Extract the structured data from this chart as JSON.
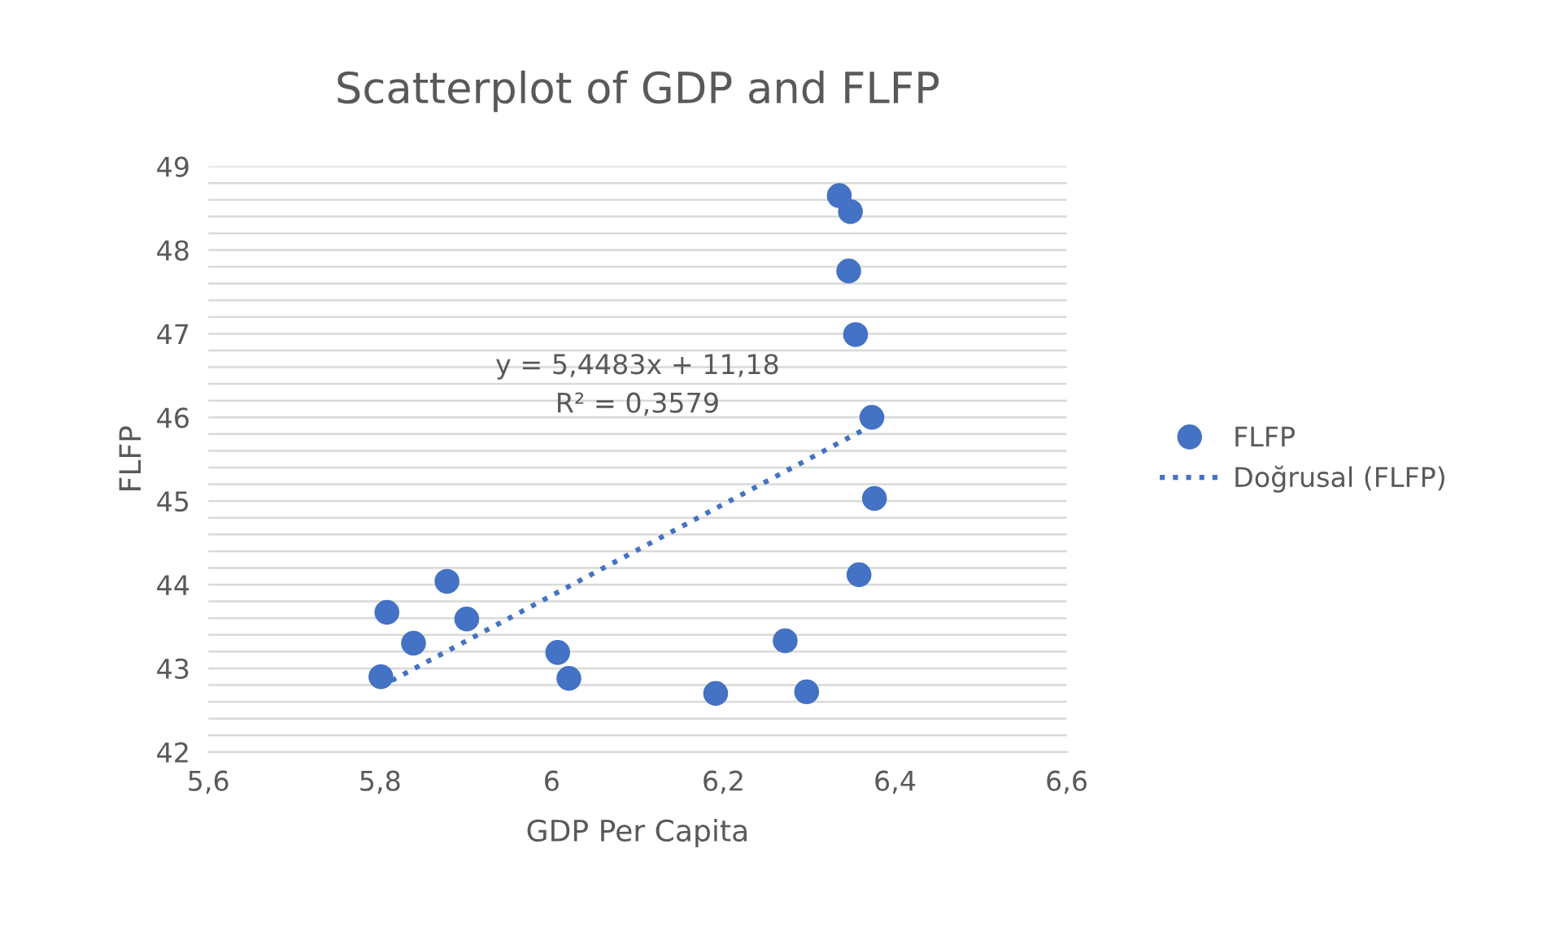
{
  "chart_data": {
    "type": "scatter",
    "title": "Scatterplot of GDP and FLFP",
    "xlabel": "GDP Per Capita",
    "ylabel": "FLFP",
    "series": [
      {
        "name": "FLFP",
        "color": "#4472c4",
        "marker": "circle",
        "x": [
          6.335,
          6.348,
          6.346,
          6.354,
          6.373,
          6.376,
          6.358,
          5.808,
          5.878,
          5.839,
          5.901,
          5.801,
          6.007,
          6.02,
          6.191,
          6.272,
          6.297
        ],
        "values": [
          48.65,
          48.46,
          47.75,
          46.99,
          46.0,
          45.03,
          44.12,
          43.67,
          44.04,
          43.3,
          43.59,
          42.9,
          43.19,
          42.88,
          42.7,
          43.33,
          42.72
        ]
      },
      {
        "name": "Doğrusal (FLFP)",
        "type": "line",
        "color": "#4472c4",
        "line_style": "dotted",
        "x": [
          5.8,
          6.376
        ],
        "values": [
          42.78,
          45.92
        ]
      }
    ],
    "annotations": [
      "y = 5,4483x + 11,18\nR² = 0,3579"
    ],
    "xlim": [
      5.6,
      6.6
    ],
    "ylim": [
      42,
      49
    ],
    "xticks": [
      {
        "value": 5.6,
        "label": "5,6"
      },
      {
        "value": 5.8,
        "label": "5,8"
      },
      6,
      {
        "value": 6.2,
        "label": "6,2"
      },
      {
        "value": 6.4,
        "label": "6,4"
      },
      {
        "value": 6.6,
        "label": "6,6"
      }
    ],
    "yticks": [
      42,
      {
        "value": 42.2,
        "label": null
      },
      {
        "value": 42.4,
        "label": null
      },
      {
        "value": 42.6,
        "label": null
      },
      {
        "value": 42.8,
        "label": null
      },
      43,
      {
        "value": 43.2,
        "label": null
      },
      {
        "value": 43.4,
        "label": null
      },
      {
        "value": 43.6,
        "label": null
      },
      {
        "value": 43.8,
        "label": null
      },
      44,
      {
        "value": 44.2,
        "label": null
      },
      {
        "value": 44.4,
        "label": null
      },
      {
        "value": 44.6,
        "label": null
      },
      {
        "value": 44.8,
        "label": null
      },
      45,
      {
        "value": 45.2,
        "label": null
      },
      {
        "value": 45.4,
        "label": null
      },
      {
        "value": 45.6,
        "label": null
      },
      {
        "value": 45.8,
        "label": null
      },
      46,
      {
        "value": 46.2,
        "label": null
      },
      {
        "value": 46.4,
        "label": null
      },
      {
        "value": 46.6,
        "label": null
      },
      {
        "value": 46.8,
        "label": null
      },
      47,
      {
        "value": 47.2,
        "label": null
      },
      {
        "value": 47.4,
        "label": null
      },
      {
        "value": 47.6,
        "label": null
      },
      {
        "value": 47.8,
        "label": null
      },
      48,
      {
        "value": 48.2,
        "label": null
      },
      {
        "value": 48.4,
        "label": null
      },
      {
        "value": 48.6,
        "label": null
      },
      {
        "value": 48.8,
        "label": null
      },
      49
    ],
    "grid": "y",
    "legend": "right"
  }
}
